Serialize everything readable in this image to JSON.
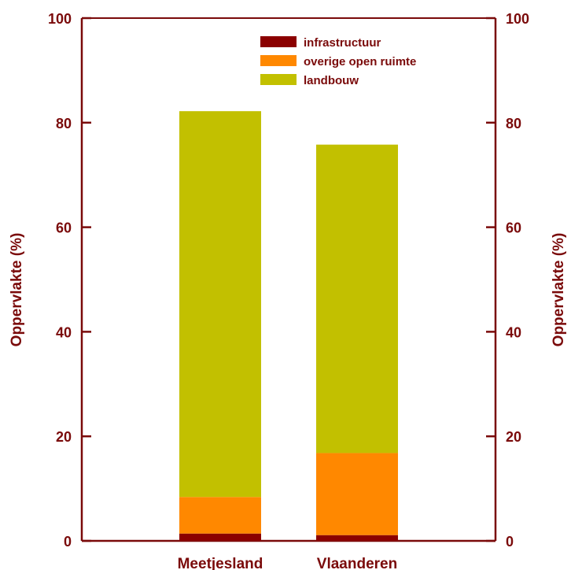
{
  "chart_data": {
    "type": "bar",
    "stacked": true,
    "categories": [
      "Meetjesland",
      "Vlaanderen"
    ],
    "series": [
      {
        "name": "infrastructuur",
        "values": [
          1.4,
          1.1
        ],
        "color": "#8b0000"
      },
      {
        "name": "overige open ruimte",
        "values": [
          7.0,
          15.7
        ],
        "color": "#ff8800"
      },
      {
        "name": "landbouw",
        "values": [
          73.8,
          59.0
        ],
        "color": "#c2c000"
      }
    ],
    "title": "",
    "xlabel": "",
    "ylabel": "Oppervlakte (%)",
    "ylabel_right": "Oppervlakte (%)",
    "ylim": [
      0,
      100
    ],
    "yticks": [
      0,
      20,
      40,
      60,
      80,
      100
    ],
    "grid": false,
    "legend_position": "top-right",
    "axis_color": "#7a0a0a"
  }
}
